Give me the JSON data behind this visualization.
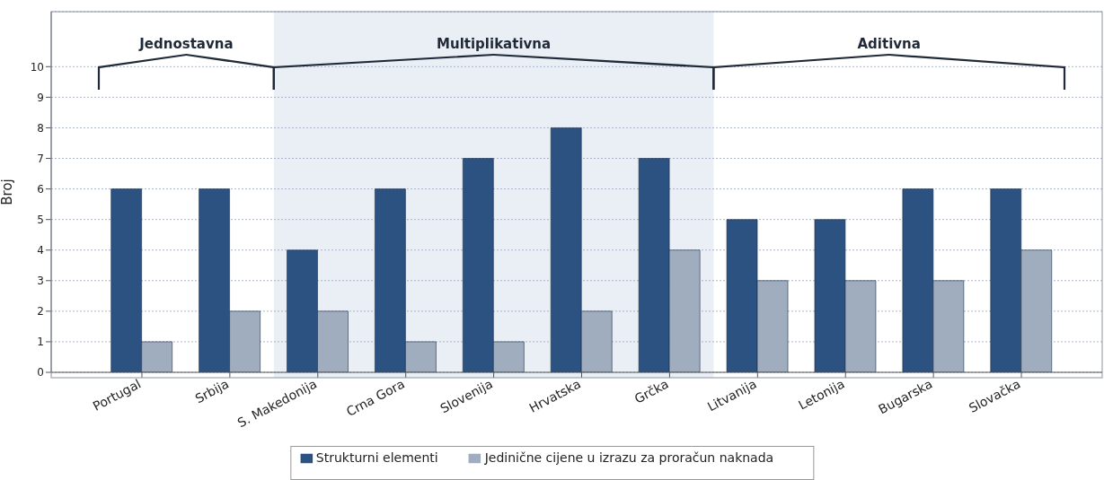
{
  "chart_data": {
    "type": "bar",
    "ylabel": "Broj",
    "categories": [
      "Portugal",
      "Srbija",
      "S. Makedonija",
      "Crna Gora",
      "Slovenija",
      "Hrvatska",
      "Grčka",
      "Litvanija",
      "Letonija",
      "Bugarska",
      "Slovačka"
    ],
    "series": [
      {
        "name": "Strukturni elementi",
        "color": "#2c5282",
        "values": [
          6,
          6,
          4,
          6,
          7,
          8,
          7,
          5,
          5,
          6,
          6
        ]
      },
      {
        "name": "Jedinične cijene u izrazu za proračun naknada",
        "color": "#a0adbf",
        "values": [
          1,
          2,
          2,
          1,
          1,
          2,
          4,
          3,
          3,
          3,
          4
        ]
      }
    ],
    "ylim": [
      0,
      11.8
    ],
    "yticks": [
      0,
      1,
      2,
      3,
      4,
      5,
      6,
      7,
      8,
      9,
      10
    ],
    "bands": [
      {
        "axis": "x",
        "from": "S. Makedonija",
        "to": "Grčka",
        "color": "#e9eff5"
      }
    ],
    "annotations": [
      "Jednostavna",
      "Multiplikativna",
      "Aditivna"
    ],
    "grid": "y",
    "legend": "bottom"
  }
}
